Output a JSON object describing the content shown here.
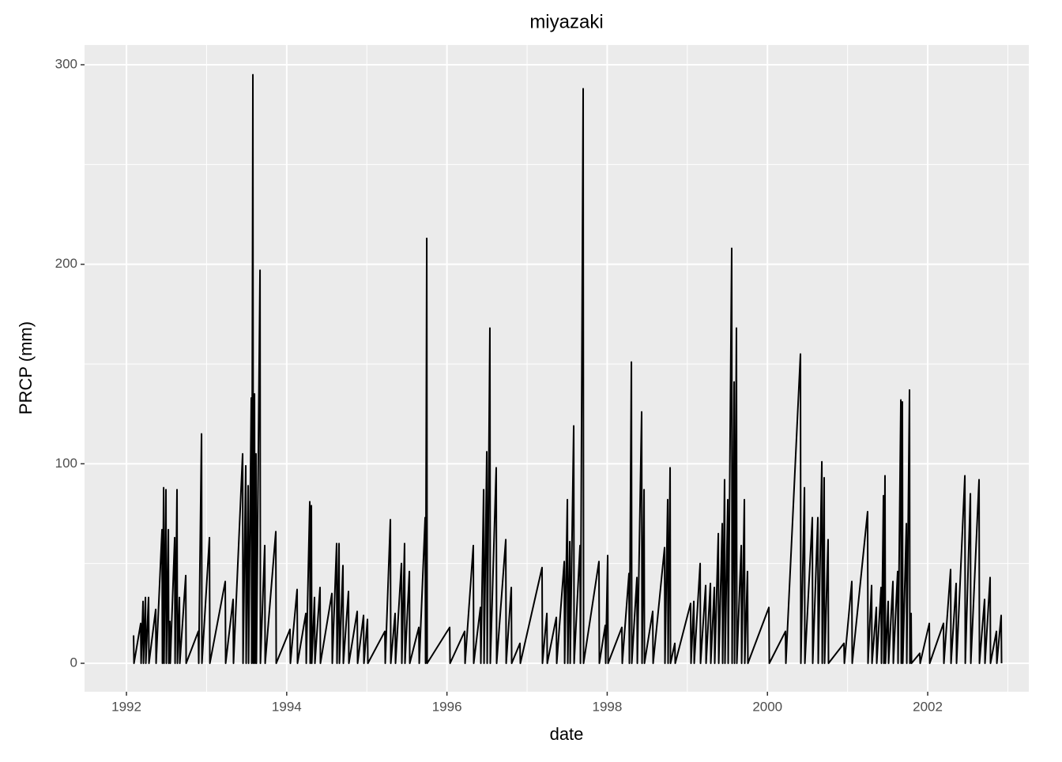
{
  "chart_data": {
    "type": "line",
    "title": "miyazaki",
    "x_label": "date",
    "y_label": "PRCP (mm)",
    "x": [
      1992.089,
      1992.094,
      1992.178,
      1992.183,
      1992.207,
      1992.212,
      1992.237,
      1992.242,
      1992.276,
      1992.281,
      1992.365,
      1992.37,
      1992.444,
      1992.449,
      1992.464,
      1992.469,
      1992.493,
      1992.498,
      1992.523,
      1992.528,
      1992.542,
      1992.547,
      1992.602,
      1992.607,
      1992.631,
      1992.636,
      1992.661,
      1992.666,
      1992.74,
      1992.745,
      1992.897,
      1992.902,
      1992.937,
      1992.942,
      1993.036,
      1993.041,
      1993.233,
      1993.238,
      1993.331,
      1993.336,
      1993.45,
      1993.455,
      1993.489,
      1993.494,
      1993.519,
      1993.524,
      1993.558,
      1993.563,
      1993.578,
      1993.583,
      1993.598,
      1993.603,
      1993.617,
      1993.622,
      1993.667,
      1993.672,
      1993.726,
      1993.731,
      1993.864,
      1993.869,
      1994.041,
      1994.046,
      1994.13,
      1994.135,
      1994.239,
      1994.244,
      1994.288,
      1994.293,
      1994.308,
      1994.313,
      1994.347,
      1994.352,
      1994.416,
      1994.421,
      1994.564,
      1994.569,
      1994.623,
      1994.628,
      1994.653,
      1994.658,
      1994.702,
      1994.707,
      1994.771,
      1994.776,
      1994.88,
      1994.885,
      1994.959,
      1994.964,
      1995.008,
      1995.013,
      1995.225,
      1995.23,
      1995.294,
      1995.299,
      1995.353,
      1995.358,
      1995.432,
      1995.437,
      1995.471,
      1995.476,
      1995.531,
      1995.536,
      1995.649,
      1995.654,
      1995.728,
      1995.733,
      1995.748,
      1995.753,
      1996.034,
      1996.039,
      1996.221,
      1996.226,
      1996.329,
      1996.334,
      1996.418,
      1996.423,
      1996.458,
      1996.463,
      1996.497,
      1996.502,
      1996.536,
      1996.541,
      1996.615,
      1996.62,
      1996.734,
      1996.739,
      1996.803,
      1996.808,
      1996.911,
      1996.916,
      1997.187,
      1997.192,
      1997.247,
      1997.252,
      1997.365,
      1997.37,
      1997.464,
      1997.469,
      1997.503,
      1997.508,
      1997.533,
      1997.538,
      1997.582,
      1997.587,
      1997.661,
      1997.666,
      1997.7,
      1997.705,
      1997.897,
      1997.902,
      1997.976,
      1997.981,
      1998.006,
      1998.011,
      1998.183,
      1998.188,
      1998.272,
      1998.277,
      1998.302,
      1998.307,
      1998.371,
      1998.376,
      1998.43,
      1998.435,
      1998.46,
      1998.465,
      1998.568,
      1998.573,
      1998.716,
      1998.721,
      1998.755,
      1998.76,
      1998.785,
      1998.79,
      1998.844,
      1998.849,
      1999.041,
      1999.046,
      1999.081,
      1999.086,
      1999.16,
      1999.165,
      1999.229,
      1999.234,
      1999.288,
      1999.293,
      1999.337,
      1999.342,
      1999.387,
      1999.392,
      1999.436,
      1999.441,
      1999.465,
      1999.47,
      1999.505,
      1999.51,
      1999.554,
      1999.559,
      1999.584,
      1999.589,
      1999.613,
      1999.618,
      1999.673,
      1999.678,
      1999.712,
      1999.717,
      1999.751,
      1999.756,
      2000.018,
      2000.023,
      2000.225,
      2000.23,
      2000.412,
      2000.417,
      2000.462,
      2000.467,
      2000.56,
      2000.565,
      2000.629,
      2000.634,
      2000.679,
      2000.684,
      2000.708,
      2000.713,
      2000.757,
      2000.762,
      2000.955,
      2000.96,
      2001.053,
      2001.058,
      2001.25,
      2001.255,
      2001.3,
      2001.305,
      2001.359,
      2001.364,
      2001.418,
      2001.423,
      2001.448,
      2001.453,
      2001.467,
      2001.472,
      2001.507,
      2001.512,
      2001.566,
      2001.571,
      2001.625,
      2001.63,
      2001.665,
      2001.67,
      2001.684,
      2001.689,
      2001.734,
      2001.739,
      2001.773,
      2001.778,
      2001.793,
      2001.798,
      2001.901,
      2001.906,
      2002.02,
      2002.025,
      2002.197,
      2002.202,
      2002.286,
      2002.291,
      2002.355,
      2002.36,
      2002.464,
      2002.469,
      2002.533,
      2002.538,
      2002.641,
      2002.646,
      2002.71,
      2002.715,
      2002.779,
      2002.784,
      2002.858,
      2002.863,
      2002.917,
      2002.922
    ],
    "series": [
      {
        "name": "PRCP",
        "color": "#000000",
        "values": [
          14,
          0,
          20,
          0,
          31,
          0,
          33,
          0,
          33,
          0,
          27,
          0,
          67,
          0,
          88,
          0,
          87,
          0,
          67,
          0,
          21,
          0,
          63,
          0,
          87,
          0,
          33,
          0,
          44,
          0,
          16,
          0,
          115,
          0,
          63,
          0,
          41,
          0,
          32,
          0,
          105,
          0,
          99,
          0,
          89,
          0,
          133,
          0,
          295,
          0,
          135,
          0,
          105,
          0,
          197,
          0,
          59,
          0,
          66,
          0,
          17,
          0,
          37,
          0,
          25,
          0,
          81,
          0,
          79,
          0,
          33,
          0,
          38,
          0,
          35,
          0,
          60,
          0,
          60,
          0,
          49,
          0,
          36,
          0,
          26,
          0,
          24,
          0,
          22,
          0,
          16,
          0,
          72,
          0,
          25,
          0,
          50,
          0,
          60,
          0,
          46,
          0,
          18,
          0,
          73,
          0,
          213,
          0,
          18,
          0,
          16,
          0,
          59,
          0,
          28,
          0,
          87,
          0,
          106,
          0,
          168,
          0,
          98,
          0,
          62,
          0,
          38,
          0,
          10,
          0,
          48,
          0,
          25,
          0,
          23,
          0,
          51,
          0,
          82,
          0,
          61,
          0,
          119,
          0,
          59,
          0,
          288,
          0,
          51,
          0,
          19,
          0,
          54,
          0,
          18,
          0,
          45,
          0,
          151,
          0,
          43,
          0,
          126,
          0,
          87,
          0,
          26,
          0,
          58,
          0,
          82,
          0,
          98,
          0,
          10,
          0,
          30,
          0,
          31,
          0,
          50,
          0,
          39,
          0,
          40,
          0,
          38,
          0,
          65,
          0,
          70,
          0,
          92,
          0,
          82,
          0,
          208,
          0,
          141,
          0,
          168,
          0,
          59,
          0,
          82,
          0,
          46,
          0,
          28,
          0,
          16,
          0,
          155,
          0,
          88,
          0,
          73,
          0,
          73,
          0,
          101,
          0,
          93,
          0,
          62,
          0,
          10,
          0,
          41,
          0,
          76,
          0,
          39,
          0,
          28,
          0,
          38,
          0,
          84,
          0,
          94,
          0,
          31,
          0,
          41,
          0,
          46,
          0,
          132,
          0,
          131,
          0,
          70,
          0,
          137,
          0,
          25,
          0,
          5,
          0,
          20,
          0,
          20,
          0,
          47,
          0,
          40,
          0,
          94,
          0,
          85,
          0,
          92,
          0,
          32,
          0,
          43,
          0,
          16,
          0,
          24,
          0
        ]
      }
    ],
    "xlim": [
      1991.477,
      2003.262
    ],
    "xticks": [
      1992,
      1994,
      1996,
      1998,
      2000,
      2002
    ],
    "x_minor_grid": [
      1993,
      1995,
      1997,
      1999,
      2001,
      2003
    ],
    "ylim": [
      -14.25,
      309.9
    ],
    "yticks": [
      0,
      100,
      200,
      300
    ],
    "y_minor_grid": [
      50,
      150,
      250
    ],
    "grid": true
  }
}
